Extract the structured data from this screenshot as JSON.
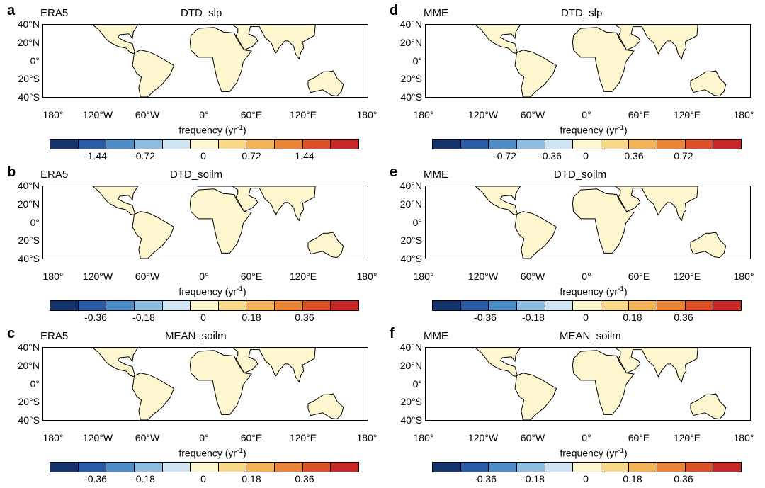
{
  "panels": [
    {
      "letter": "a",
      "source": "ERA5",
      "title": "DTD_slp",
      "ticks": [
        "-1.44",
        "-0.72",
        "0",
        "0.72",
        "1.44"
      ]
    },
    {
      "letter": "b",
      "source": "ERA5",
      "title": "DTD_soilm",
      "ticks": [
        "-0.36",
        "-0.18",
        "0",
        "0.18",
        "0.36"
      ]
    },
    {
      "letter": "c",
      "source": "ERA5",
      "title": "MEAN_soilm",
      "ticks": [
        "-0.36",
        "-0.18",
        "0",
        "0.18",
        "0.36"
      ]
    },
    {
      "letter": "d",
      "source": "MME",
      "title": "DTD_slp",
      "ticks": [
        "-0.72",
        "-0.36",
        "0",
        "0.36",
        "0.72"
      ]
    },
    {
      "letter": "e",
      "source": "MME",
      "title": "DTD_soilm",
      "ticks": [
        "-0.36",
        "-0.18",
        "0",
        "0.18",
        "0.36"
      ]
    },
    {
      "letter": "f",
      "source": "MME",
      "title": "MEAN_soilm",
      "ticks": [
        "-0.36",
        "-0.18",
        "0",
        "0.18",
        "0.36"
      ]
    }
  ],
  "lat_labels": [
    "40°N",
    "20°N",
    "0°",
    "20°S",
    "40°S"
  ],
  "lon_labels": [
    "180°",
    "120°W",
    "60°W",
    "0°",
    "60°E",
    "120°E",
    "180°"
  ],
  "xlabel_text": "frequency (yr",
  "xlabel_sup": "-1",
  "xlabel_close": ")",
  "colorbar_colors": [
    "#15346b",
    "#2a5ca8",
    "#4f8dc6",
    "#8fbde0",
    "#cfe5f2",
    "#fdf6cf",
    "#f8d98a",
    "#f2b358",
    "#e98539",
    "#dc5127",
    "#c62729"
  ]
}
